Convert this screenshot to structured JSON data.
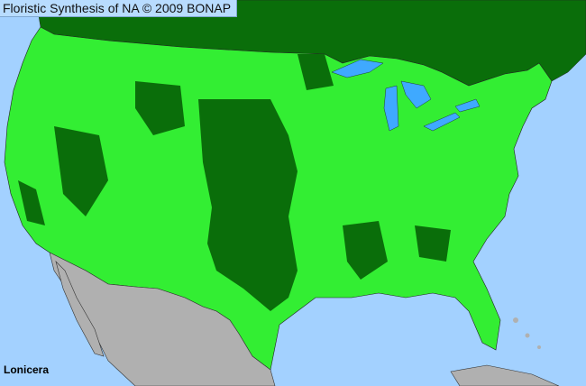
{
  "header": {
    "title": "Floristic Synthesis of NA © 2009 BONAP"
  },
  "map": {
    "taxon_label": "Lonicera",
    "colors": {
      "ocean": "#a3d1ff",
      "present_native": "#33ee33",
      "present_other": "#0a6e0a",
      "canada": "#0a6e0a",
      "mexico": "#b0b0b0",
      "lakes": "#3fa9ff",
      "borders": "#222222"
    }
  }
}
